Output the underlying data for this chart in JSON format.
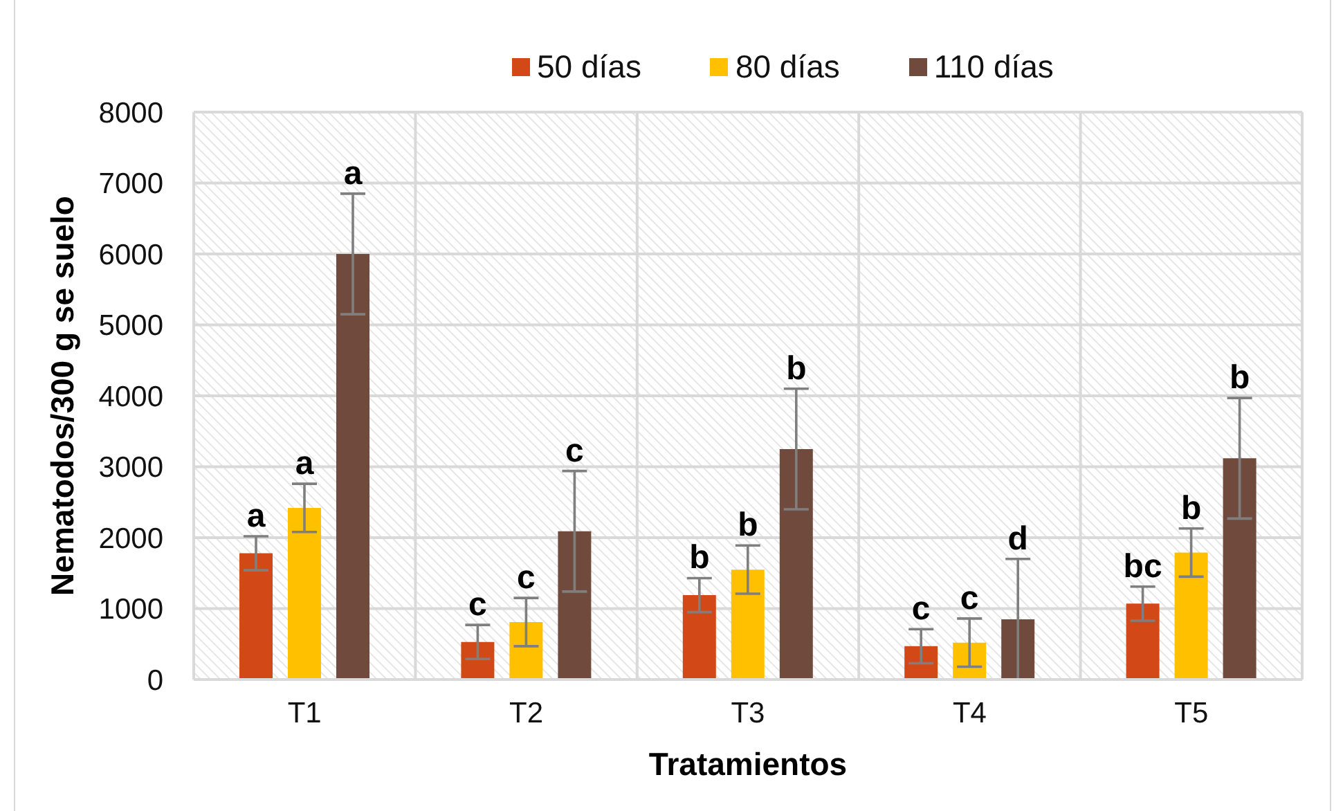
{
  "chart_data": {
    "type": "bar",
    "xlabel": "Tratamientos",
    "ylabel": "Nematodos/300 g se suelo",
    "categories": [
      "T1",
      "T2",
      "T3",
      "T4",
      "T5"
    ],
    "series": [
      {
        "name": "50 días",
        "color": "#d34817",
        "values": [
          1780,
          530,
          1190,
          470,
          1070
        ],
        "errors": [
          240,
          240,
          240,
          240,
          240
        ],
        "value_labels": [
          "a",
          "c",
          "b",
          "c",
          "bc"
        ]
      },
      {
        "name": "80 días",
        "color": "#ffc000",
        "values": [
          2420,
          810,
          1550,
          520,
          1790
        ],
        "errors": [
          340,
          340,
          340,
          340,
          340
        ],
        "value_labels": [
          "a",
          "c",
          "b",
          "c",
          "b"
        ]
      },
      {
        "name": "110 días",
        "color": "#704b3d",
        "values": [
          6000,
          2090,
          3250,
          850,
          3120
        ],
        "errors": [
          850,
          850,
          850,
          850,
          850
        ],
        "value_labels": [
          "a",
          "c",
          "b",
          "d",
          "b"
        ]
      }
    ],
    "ylim": [
      0,
      8000
    ],
    "yticks": [
      0,
      1000,
      2000,
      3000,
      4000,
      5000,
      6000,
      7000,
      8000
    ],
    "grid": true,
    "legend": "top"
  }
}
